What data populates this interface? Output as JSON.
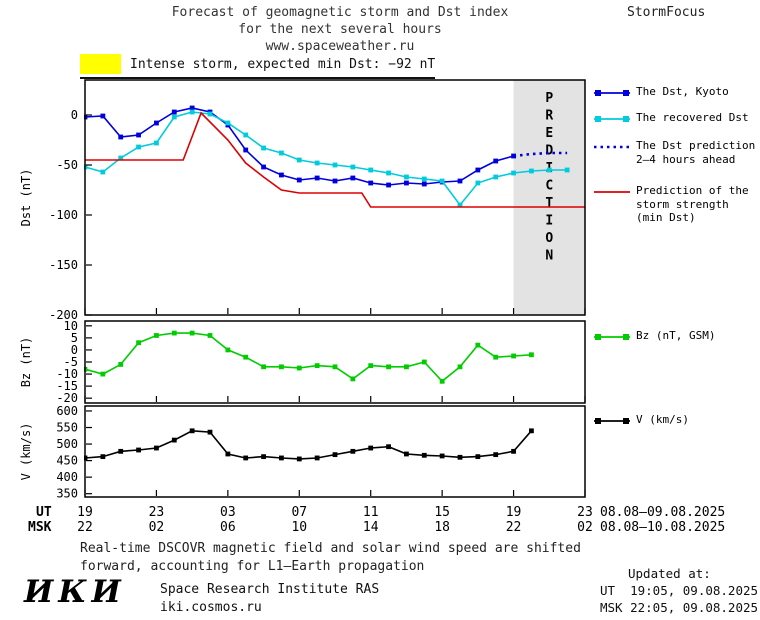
{
  "header": {
    "title_line1": "Forecast of geomagnetic storm and Dst index",
    "title_line2": "for the next several hours",
    "title_line3": "www.spaceweather.ru",
    "brand": "StormFocus"
  },
  "warning": {
    "swatch_color": "#ffff00",
    "text": "Intense storm, expected min Dst: −92 nT"
  },
  "colors": {
    "blue": "#0000dd",
    "cyan": "#00ccdd",
    "red": "#dd0000",
    "green": "#00cc00",
    "black": "#000000",
    "prediction_bg": "#e3e3e3",
    "prediction_text": "#bbbbbb",
    "frame": "#000000"
  },
  "legend": {
    "dst_kyoto": "The Dst, Kyoto",
    "recovered": "The recovered Dst",
    "prediction_line1": "The Dst prediction",
    "prediction_line2": "2–4 hours ahead",
    "storm_line1": "Prediction of the",
    "storm_line2": "storm strength",
    "storm_line3": "(min Dst)",
    "bz": "Bz (nT, GSM)",
    "v": "V (km/s)"
  },
  "axes": {
    "ut_label": "UT",
    "msk_label": "MSK",
    "ut_ticks": [
      "19",
      "23",
      "03",
      "07",
      "11",
      "15",
      "19",
      "23"
    ],
    "msk_ticks": [
      "22",
      "02",
      "06",
      "10",
      "14",
      "18",
      "22",
      "02"
    ],
    "ut_date_range": "08.08–09.08.2025",
    "msk_date_range": "08.08–10.08.2025",
    "prediction_label": "PREDICTION"
  },
  "footnote": {
    "line1": "Real-time DSCOVR magnetic field and solar wind speed are shifted",
    "line2": "forward, accounting for L1–Earth propagation"
  },
  "footer": {
    "logo": "ИКИ",
    "institute": "Space Research Institute RAS",
    "site": "iki.cosmos.ru",
    "updated_label": "Updated at:",
    "updated_ut": "UT  19:05, 09.08.2025",
    "updated_msk": "MSK 22:05, 09.08.2025"
  },
  "chart_data": [
    {
      "type": "line",
      "title": "Forecast of geomagnetic storm and Dst index for the next several hours",
      "ylabel": "Dst (nT)",
      "xlabel": "UT/MSK time",
      "ylim": [
        -200,
        35
      ],
      "yticks": [
        0,
        -50,
        -100,
        -150,
        -200
      ],
      "xlim": [
        0,
        28
      ],
      "xticks_hours": [
        0,
        4,
        8,
        12,
        16,
        20,
        24,
        28
      ],
      "x_unit": "hours from 19:00 UT 08.08.2025",
      "prediction_region": [
        24,
        28
      ],
      "legend_position": "right",
      "series": [
        {
          "name": "The Dst, Kyoto",
          "color": "#0000dd",
          "marker": "square",
          "style": "solid",
          "x": [
            0,
            1,
            2,
            3,
            4,
            5,
            6,
            7,
            8,
            9,
            10,
            11,
            12,
            13,
            14,
            15,
            16,
            17,
            18,
            19,
            20,
            21,
            22,
            23,
            24
          ],
          "values": [
            -2,
            -1,
            -22,
            -20,
            -8,
            3,
            7,
            3,
            -10,
            -35,
            -52,
            -60,
            -65,
            -63,
            -66,
            -63,
            -68,
            -70,
            -68,
            -69,
            -67,
            -66,
            -55,
            -46,
            -41
          ]
        },
        {
          "name": "The recovered Dst",
          "color": "#00ccdd",
          "marker": "square",
          "style": "solid",
          "x": [
            0,
            1,
            2,
            3,
            4,
            5,
            6,
            7,
            8,
            9,
            10,
            11,
            12,
            13,
            14,
            15,
            16,
            17,
            18,
            19,
            20,
            21,
            22,
            23,
            24,
            25,
            26,
            27
          ],
          "values": [
            -52,
            -57,
            -43,
            -32,
            -28,
            -2,
            3,
            1,
            -8,
            -20,
            -33,
            -38,
            -45,
            -48,
            -50,
            -52,
            -55,
            -58,
            -62,
            -64,
            -66,
            -90,
            -68,
            -62,
            -58,
            -56,
            -55,
            -55
          ]
        },
        {
          "name": "The Dst prediction 2–4 hours ahead",
          "color": "#0000dd",
          "marker": "none",
          "style": "dotted",
          "x": [
            24,
            25,
            26,
            27
          ],
          "values": [
            -41,
            -39,
            -38,
            -38
          ]
        },
        {
          "name": "Prediction of the storm strength (min Dst)",
          "color": "#dd0000",
          "marker": "none",
          "style": "solid",
          "x": [
            0,
            5.5,
            6.5,
            8,
            9,
            10,
            11,
            12,
            15.5,
            16,
            28
          ],
          "values": [
            -45,
            -45,
            2,
            -25,
            -48,
            -62,
            -75,
            -78,
            -78,
            -92,
            -92
          ]
        }
      ]
    },
    {
      "type": "line",
      "ylabel": "Bz (nT)",
      "ylim": [
        -22,
        12
      ],
      "yticks": [
        10,
        5,
        0,
        -5,
        -10,
        -15,
        -20
      ],
      "xlim": [
        0,
        28
      ],
      "xticks_hours": [
        0,
        4,
        8,
        12,
        16,
        20,
        24,
        28
      ],
      "series": [
        {
          "name": "Bz (nT, GSM)",
          "color": "#00cc00",
          "marker": "square",
          "style": "solid",
          "x": [
            0,
            1,
            2,
            3,
            4,
            5,
            6,
            7,
            8,
            9,
            10,
            11,
            12,
            13,
            14,
            15,
            16,
            17,
            18,
            19,
            20,
            21,
            22,
            23,
            24,
            25
          ],
          "values": [
            -8,
            -10,
            -6,
            3,
            6,
            7,
            7,
            6,
            0,
            -3,
            -7,
            -7,
            -7.5,
            -6.5,
            -7,
            -12,
            -6.5,
            -7,
            -7,
            -5,
            -13,
            -7,
            2,
            -3,
            -2.5,
            -2
          ]
        }
      ]
    },
    {
      "type": "line",
      "ylabel": "V (km/s)",
      "ylim": [
        340,
        615
      ],
      "yticks": [
        600,
        550,
        500,
        450,
        400,
        350
      ],
      "xlim": [
        0,
        28
      ],
      "xticks_hours": [
        0,
        4,
        8,
        12,
        16,
        20,
        24,
        28
      ],
      "series": [
        {
          "name": "V (km/s)",
          "color": "#000000",
          "marker": "square",
          "style": "solid",
          "x": [
            0,
            1,
            2,
            3,
            4,
            5,
            6,
            7,
            8,
            9,
            10,
            11,
            12,
            13,
            14,
            15,
            16,
            17,
            18,
            19,
            20,
            21,
            22,
            23,
            24,
            25
          ],
          "values": [
            458,
            462,
            478,
            482,
            488,
            512,
            540,
            536,
            470,
            458,
            462,
            458,
            455,
            458,
            468,
            478,
            488,
            492,
            470,
            466,
            464,
            460,
            462,
            468,
            478,
            540
          ]
        }
      ]
    }
  ]
}
